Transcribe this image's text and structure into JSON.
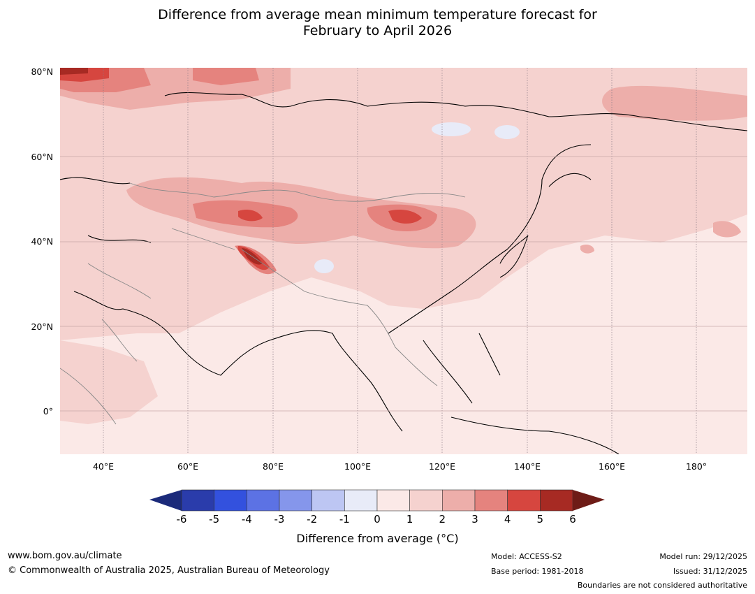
{
  "title": {
    "line1": "Difference from average mean minimum temperature forecast for",
    "line2": "February to April 2026"
  },
  "map": {
    "lat_labels": [
      "80°N",
      "60°N",
      "40°N",
      "20°N",
      "0°"
    ],
    "lon_labels": [
      "40°E",
      "60°E",
      "80°E",
      "100°E",
      "120°E",
      "140°E",
      "160°E",
      "180°"
    ],
    "extent": {
      "lon_min": 30,
      "lon_max": 192,
      "lat_min": -10,
      "lat_max": 80
    }
  },
  "colorbar": {
    "ticks": [
      "-6",
      "-5",
      "-4",
      "-3",
      "-2",
      "-1",
      "0",
      "1",
      "2",
      "3",
      "4",
      "5",
      "6"
    ],
    "colors": [
      "#2a3cab",
      "#3351de",
      "#5c72e4",
      "#8596eb",
      "#bdc6f3",
      "#e8ebf8",
      "#fbe9e7",
      "#f5d2cf",
      "#edaeaa",
      "#e5837e",
      "#d6463f",
      "#a72a23"
    ],
    "under_color": "#1b2a7a",
    "over_color": "#6e1c17",
    "label": "Difference from average (°C)"
  },
  "footer": {
    "url": "www.bom.gov.au/climate",
    "copyright": "© Commonwealth of Australia 2025, Australian Bureau of Meteorology",
    "model": "Model: ACCESS-S2",
    "base_period": "Base period: 1981-2018",
    "model_run": "Model run: 29/12/2025",
    "issued": "Issued: 31/12/2025",
    "disclaimer": "Boundaries are not considered authoritative"
  }
}
